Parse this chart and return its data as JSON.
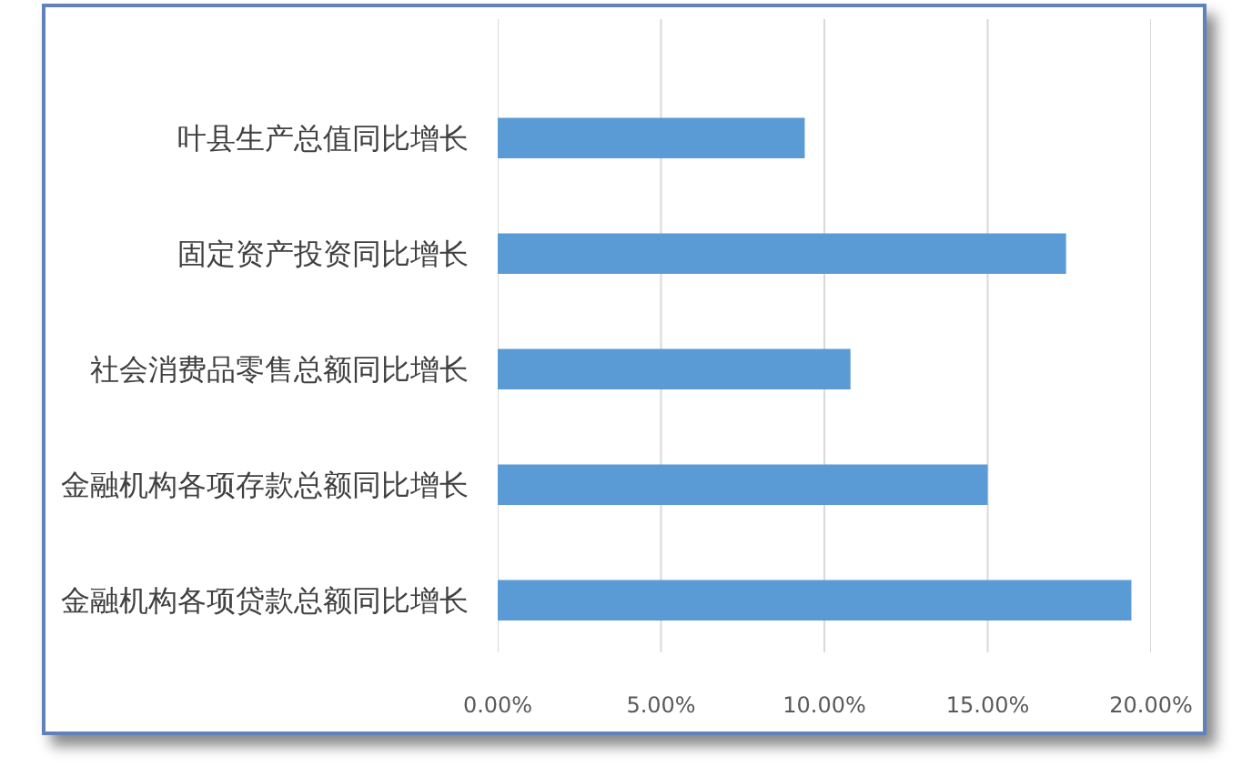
{
  "chart_data": {
    "type": "bar",
    "orientation": "horizontal",
    "categories": [
      "叶县生产总值同比增长",
      "固定资产投资同比增长",
      "社会消费品零售总额同比增长",
      "金融机构各项存款总额同比增长",
      "金融机构各项贷款总额同比增长"
    ],
    "values": [
      9.4,
      17.4,
      10.8,
      15.0,
      19.4
    ],
    "color": "#5b9bd5",
    "xlim": [
      0,
      20
    ],
    "xticks": [
      {
        "value": 0,
        "label": "0.00%"
      },
      {
        "value": 5,
        "label": "5.00%"
      },
      {
        "value": 10,
        "label": "10.00%"
      },
      {
        "value": 15,
        "label": "15.00%"
      },
      {
        "value": 20,
        "label": "20.00%"
      }
    ],
    "grid": "x"
  }
}
